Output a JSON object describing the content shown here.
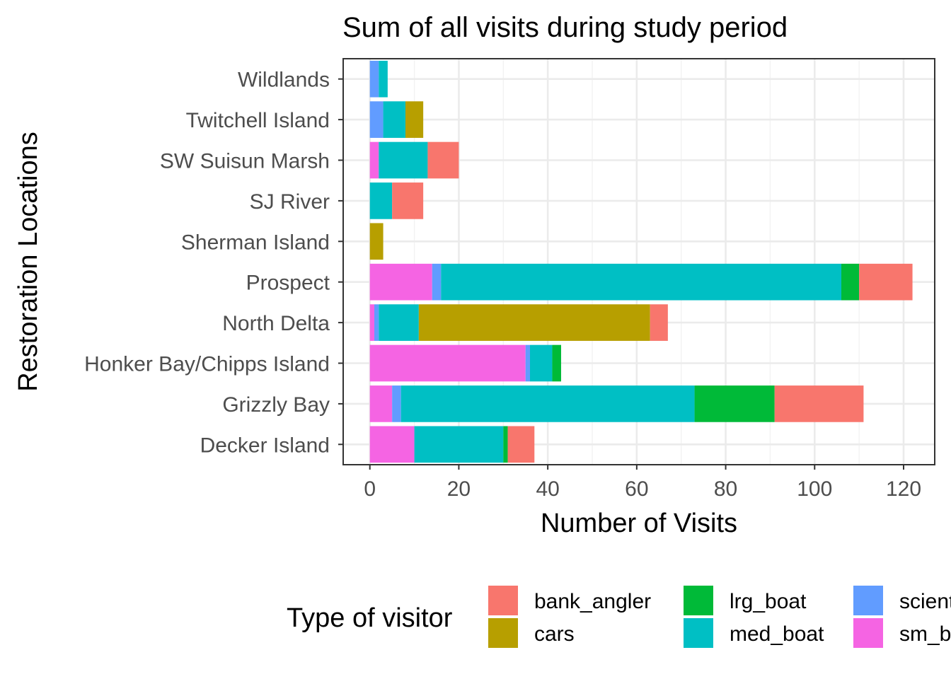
{
  "chart_data": {
    "type": "bar",
    "orientation": "horizontal",
    "stacked": true,
    "title": "Sum of all visits during study period",
    "xlabel": "Number of Visits",
    "ylabel": "Restoration Locations",
    "xlim": [
      -6,
      127
    ],
    "x_ticks": [
      0,
      20,
      40,
      60,
      80,
      100,
      120
    ],
    "grid": true,
    "categories": [
      "Decker Island",
      "Grizzly Bay",
      "Honker Bay/Chipps Island",
      "North Delta",
      "Prospect",
      "Sherman Island",
      "SJ River",
      "SW Suisun Marsh",
      "Twitchell Island",
      "Wildlands"
    ],
    "stack_order": [
      "sm_boat",
      "scientist",
      "med_boat",
      "lrg_boat",
      "cars",
      "bank_angler"
    ],
    "series": [
      {
        "name": "bank_angler",
        "color": "#F8766D",
        "values": [
          6,
          20,
          0,
          4,
          12,
          0,
          7,
          7,
          0,
          0
        ]
      },
      {
        "name": "cars",
        "color": "#B79F00",
        "values": [
          0,
          0,
          0,
          52,
          0,
          3,
          0,
          0,
          4,
          0
        ]
      },
      {
        "name": "lrg_boat",
        "color": "#00BA38",
        "values": [
          1,
          18,
          2,
          0,
          4,
          0,
          0,
          0,
          0,
          0
        ]
      },
      {
        "name": "med_boat",
        "color": "#00BFC4",
        "values": [
          20,
          66,
          5,
          9,
          90,
          0,
          5,
          11,
          5,
          2
        ]
      },
      {
        "name": "scientist",
        "color": "#619CFF",
        "values": [
          0,
          2,
          1,
          1,
          2,
          0,
          0,
          0,
          3,
          2
        ]
      },
      {
        "name": "sm_boat",
        "color": "#F564E3",
        "values": [
          10,
          5,
          35,
          1,
          14,
          0,
          0,
          2,
          0,
          0
        ]
      }
    ],
    "legend": {
      "title": "Type of visitor",
      "position": "bottom",
      "entries": [
        "bank_angler",
        "cars",
        "lrg_boat",
        "med_boat",
        "scientist",
        "sm_boat"
      ]
    }
  }
}
